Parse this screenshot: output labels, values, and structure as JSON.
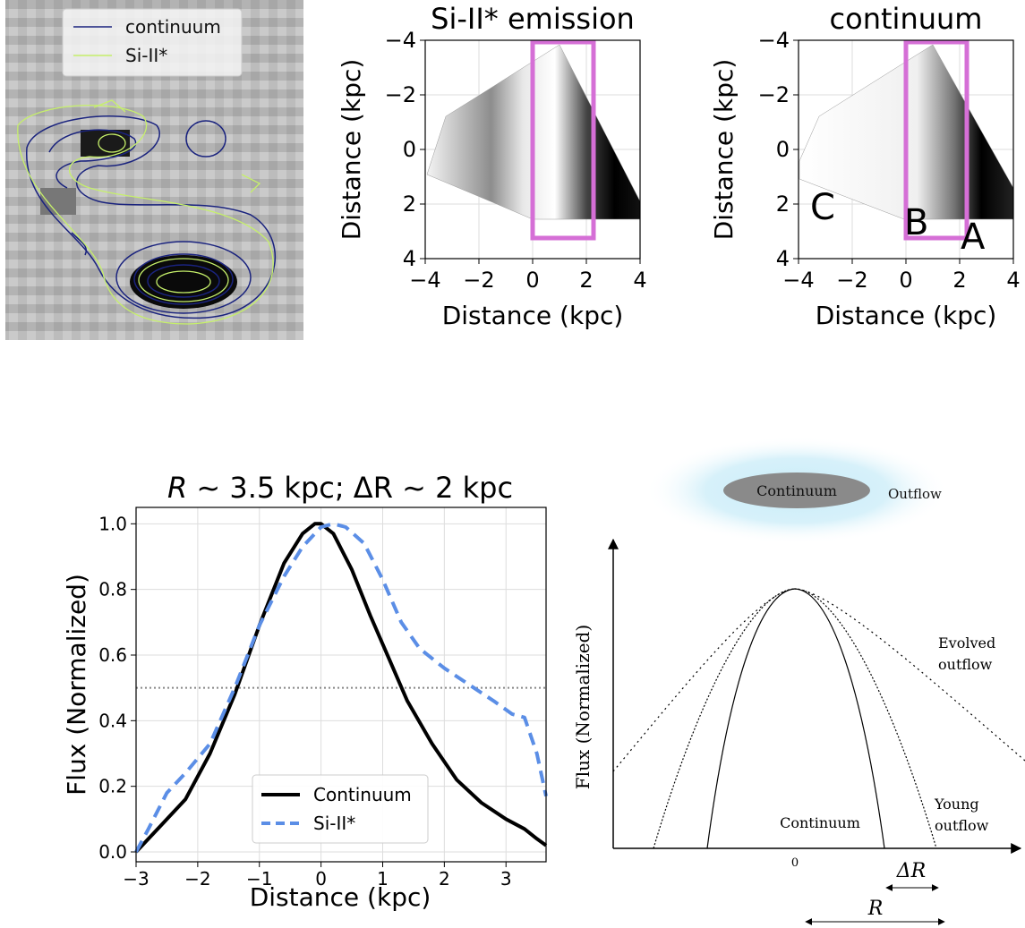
{
  "chart_data": [
    {
      "type": "heatmap",
      "panel": "image-contours",
      "legend": {
        "placement": "top-center",
        "entries": [
          {
            "name": "continuum",
            "color": "#1a237e"
          },
          {
            "name": "Si-II*",
            "color": "#c6f06a"
          }
        ]
      }
    },
    {
      "type": "heatmap",
      "panel": "si-map",
      "title": "Si-II* emission",
      "xlabel": "Distance (kpc)",
      "ylabel": "Distance (kpc)",
      "xlim": [
        -4,
        4
      ],
      "ylim": [
        4,
        -4
      ],
      "xticks": [
        "−4",
        "−2",
        "0",
        "2",
        "4"
      ],
      "yticks": [
        "−4",
        "−2",
        "0",
        "2",
        "4"
      ],
      "grid": true,
      "box": {
        "x": [
          0,
          2.25
        ],
        "y": [
          -4,
          3.2
        ],
        "color": "#d56fd6"
      }
    },
    {
      "type": "heatmap",
      "panel": "continuum-map",
      "title": "continuum",
      "xlabel": "Distance (kpc)",
      "ylabel": "Distance (kpc)",
      "xlim": [
        -4,
        4
      ],
      "ylim": [
        4,
        -4
      ],
      "xticks": [
        "−4",
        "−2",
        "0",
        "2",
        "4"
      ],
      "yticks": [
        "−4",
        "−2",
        "0",
        "2",
        "4"
      ],
      "grid": true,
      "box": {
        "x": [
          0,
          2.25
        ],
        "y": [
          -4,
          3.2
        ],
        "color": "#d56fd6"
      },
      "annotations": [
        {
          "text": "A",
          "x": 2.6,
          "y": 3.1
        },
        {
          "text": "B",
          "x": 0.5,
          "y": 2.5
        },
        {
          "text": "C",
          "x": -3.0,
          "y": 2.0
        }
      ]
    },
    {
      "type": "line",
      "panel": "profile",
      "title": "R ~ 3.5 kpc; ΔR ~ 2 kpc",
      "title_parts": {
        "r": "R",
        "sim1": " ~ 3.5 kpc; ",
        "dr": "ΔR",
        "sim2": " ~ 2 kpc"
      },
      "xlabel": "Distance (kpc)",
      "ylabel": "Flux (Normalized)",
      "xlim": [
        -3,
        3.65
      ],
      "ylim": [
        -0.03,
        1.05
      ],
      "xticks": [
        "−3",
        "−2",
        "−1",
        "0",
        "1",
        "2",
        "3"
      ],
      "yticks": [
        "0.0",
        "0.2",
        "0.4",
        "0.6",
        "0.8",
        "1.0"
      ],
      "grid": true,
      "reference_line": 0.5,
      "legend": {
        "placement": "lower-center"
      },
      "series": [
        {
          "name": "Continuum",
          "color": "#000000",
          "style": "solid",
          "x": [
            -3.0,
            -2.6,
            -2.2,
            -1.8,
            -1.4,
            -1.0,
            -0.6,
            -0.3,
            -0.1,
            0.0,
            0.2,
            0.5,
            0.8,
            1.1,
            1.4,
            1.8,
            2.2,
            2.6,
            3.0,
            3.3,
            3.5,
            3.65
          ],
          "y": [
            0.0,
            0.08,
            0.16,
            0.3,
            0.48,
            0.69,
            0.88,
            0.97,
            1.0,
            1.0,
            0.97,
            0.86,
            0.72,
            0.59,
            0.46,
            0.33,
            0.22,
            0.15,
            0.1,
            0.07,
            0.04,
            0.02
          ]
        },
        {
          "name": "Si-II*",
          "color": "#5b8ee6",
          "style": "dashed",
          "x": [
            -3.0,
            -2.8,
            -2.5,
            -2.2,
            -1.8,
            -1.4,
            -1.0,
            -0.6,
            -0.3,
            0.0,
            0.2,
            0.4,
            0.7,
            1.0,
            1.3,
            1.6,
            2.0,
            2.4,
            2.8,
            3.1,
            3.3,
            3.5,
            3.65
          ],
          "y": [
            0.0,
            0.07,
            0.18,
            0.24,
            0.33,
            0.5,
            0.69,
            0.84,
            0.93,
            0.99,
            1.0,
            0.99,
            0.94,
            0.83,
            0.7,
            0.62,
            0.56,
            0.51,
            0.46,
            0.42,
            0.41,
            0.3,
            0.17
          ]
        }
      ]
    },
    {
      "type": "line",
      "panel": "schematic",
      "ylabel": "Flux (Normalized)",
      "xtick": "0",
      "cloud": {
        "inner": "Continuum",
        "outer": "Outflow"
      },
      "labels": {
        "continuum": "Continuum",
        "young": [
          "Young",
          "outflow"
        ],
        "evolved": [
          "Evolved",
          "outflow"
        ],
        "dr": "ΔR",
        "r": "R"
      }
    }
  ]
}
